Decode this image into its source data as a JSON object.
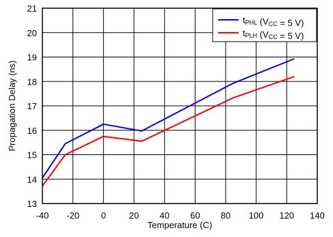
{
  "chart_data": {
    "type": "line",
    "title": "",
    "xlabel": "Temperature (C)",
    "ylabel": "Propagation Delay (ns)",
    "xlim": [
      -40,
      140
    ],
    "ylim": [
      13,
      21
    ],
    "xticks": [
      -40,
      -20,
      0,
      20,
      40,
      60,
      80,
      100,
      120,
      140
    ],
    "yticks": [
      13,
      14,
      15,
      16,
      17,
      18,
      19,
      20,
      21
    ],
    "grid": true,
    "legend_position": "top-right",
    "series": [
      {
        "name": "tPHL (VCC = 5 V)",
        "legend": {
          "main": "t",
          "sub": "PHL",
          "mid": " (V",
          "sub2": "CC",
          "tail": " = 5 V)"
        },
        "color": "#0000ff",
        "x": [
          -40,
          -25,
          0,
          25,
          85,
          125
        ],
        "y": [
          14.05,
          15.45,
          16.25,
          15.97,
          17.93,
          18.93
        ]
      },
      {
        "name": "tPLH (VCC = 5 V)",
        "legend": {
          "main": "t",
          "sub": "PLH",
          "mid": " (V",
          "sub2": "CC",
          "tail": " = 5 V)"
        },
        "color": "#ff0000",
        "x": [
          -40,
          -25,
          0,
          25,
          85,
          125
        ],
        "y": [
          13.72,
          15.0,
          15.75,
          15.55,
          17.33,
          18.2
        ]
      }
    ]
  }
}
